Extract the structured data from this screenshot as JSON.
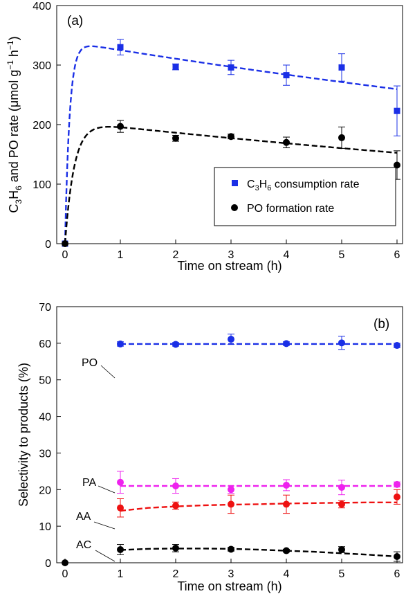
{
  "chart_data": [
    {
      "type": "scatter",
      "panel_label": "(a)",
      "xlabel": "Time on stream (h)",
      "ylabel": {
        "main": "C",
        "sub1": "3",
        "mid1": "H",
        "sub2": "6",
        "mid2": " and PO rate (μmol g",
        "sup1": "−1",
        "mid3": " h",
        "sup2": "−1",
        "end": ")"
      },
      "xlim": [
        -0.15,
        6.1
      ],
      "ylim": [
        0,
        400
      ],
      "xticks": [
        0,
        1,
        2,
        3,
        4,
        5,
        6
      ],
      "yticks": [
        0,
        100,
        200,
        300,
        400
      ],
      "legend_position": "bottom-right",
      "series": [
        {
          "name": {
            "main": "C",
            "sub1": "3",
            "mid1": "H",
            "sub2": "6",
            "end": " consumption rate"
          },
          "color": "#1a2fe6",
          "marker": "square",
          "x": [
            0,
            1,
            2,
            3,
            4,
            5,
            6
          ],
          "y": [
            0,
            330,
            297,
            296,
            283,
            296,
            223
          ],
          "err": [
            0,
            13,
            5,
            12,
            17,
            23,
            42
          ],
          "fit": {
            "type": "rise-decay",
            "a": 340,
            "k": 12,
            "d": 0.045
          }
        },
        {
          "name": "PO formation rate",
          "color": "#000000",
          "marker": "circle",
          "x": [
            0,
            1,
            2,
            3,
            4,
            5,
            6
          ],
          "y": [
            0,
            197,
            177,
            180,
            170,
            178,
            132
          ],
          "err": [
            0,
            10,
            5,
            4,
            9,
            18,
            24
          ],
          "fit": {
            "type": "rise-decay",
            "a": 206,
            "k": 6,
            "d": 0.05
          }
        }
      ]
    },
    {
      "type": "scatter",
      "panel_label": "(b)",
      "xlabel": "Time on stream (h)",
      "ylabel": "Selectivity to products (%)",
      "xlim": [
        -0.15,
        6.1
      ],
      "ylim": [
        0,
        70
      ],
      "xticks": [
        0,
        1,
        2,
        3,
        4,
        5,
        6
      ],
      "yticks": [
        0,
        10,
        20,
        30,
        40,
        50,
        60,
        70
      ],
      "series": [
        {
          "name": "PO",
          "color": "#1a2fe6",
          "marker": "circle",
          "x": [
            1,
            2,
            3,
            4,
            5,
            6
          ],
          "y": [
            59.8,
            59.7,
            61.1,
            59.9,
            60.1,
            59.4
          ],
          "err": [
            0.6,
            0.5,
            1.4,
            0.5,
            1.8,
            0.6
          ],
          "fit_y": [
            59.8,
            59.8,
            59.8,
            59.8,
            59.8,
            59.8,
            59.8,
            59.8,
            59.8,
            59.8,
            59.8
          ]
        },
        {
          "name": "PA",
          "color": "#ee22ee",
          "marker": "circle",
          "x": [
            1,
            2,
            3,
            4,
            5,
            6
          ],
          "y": [
            22,
            21,
            20,
            21.2,
            20.6,
            21.4
          ],
          "err": [
            3,
            2,
            1,
            1.5,
            2,
            0.7
          ],
          "fit_y": [
            21,
            21,
            21,
            21,
            21,
            21,
            21,
            21,
            21,
            21,
            21
          ]
        },
        {
          "name": "AA",
          "color": "#ee1111",
          "marker": "circle",
          "x": [
            1,
            2,
            3,
            4,
            5,
            6
          ],
          "y": [
            15,
            15.6,
            16,
            16,
            16,
            18
          ],
          "err": [
            2.5,
            1,
            2.5,
            2.5,
            1,
            2
          ],
          "fit_y": [
            14.2,
            15.0,
            15.4,
            15.7,
            15.9,
            16.0,
            16.2,
            16.3,
            16.4,
            16.5,
            16.5
          ]
        },
        {
          "name": "AC",
          "color": "#000000",
          "marker": "circle",
          "x": [
            0,
            1,
            2,
            3,
            4,
            5,
            6
          ],
          "y": [
            0,
            3.6,
            4,
            3.7,
            3.3,
            3.6,
            1.7
          ],
          "err": [
            0,
            1.4,
            1,
            0.5,
            0.4,
            0.8,
            1.3
          ],
          "fit_y": [
            3.5,
            3.8,
            3.9,
            3.9,
            3.8,
            3.6,
            3.3,
            3.0,
            2.6,
            2.2,
            1.7
          ]
        }
      ],
      "fit_x": [
        1,
        1.5,
        2,
        2.5,
        3,
        3.5,
        4,
        4.5,
        5,
        5.5,
        6
      ]
    }
  ]
}
